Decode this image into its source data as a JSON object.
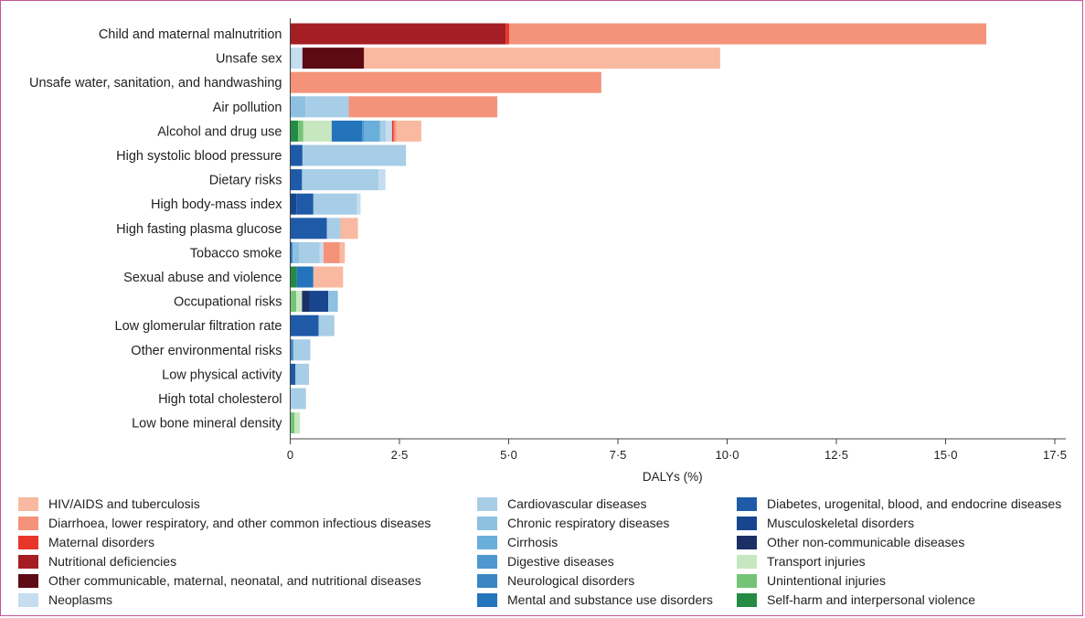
{
  "colors": {
    "HIV/AIDS and tuberculosis": "#f9b9a0",
    "Diarrhoea, lower respiratory, and other common infectious diseases": "#f4937a",
    "Maternal disorders": "#e8362b",
    "Nutritional deficiencies": "#a41e24",
    "Other communicable, maternal, neonatal, and nutritional diseases": "#5e0a14",
    "Neoplasms": "#c6dcef",
    "Cardiovascular diseases": "#a8cde6",
    "Chronic respiratory diseases": "#8ec0e1",
    "Cirrhosis": "#6aaedb",
    "Digestive diseases": "#4f98cf",
    "Neurological disorders": "#3a86c4",
    "Mental and substance use disorders": "#2474bc",
    "Diabetes, urogenital, blood, and endocrine diseases": "#1e5aa8",
    "Musculoskeletal disorders": "#17468f",
    "Other non-communicable diseases": "#1b2f66",
    "Transport injuries": "#c7e7c0",
    "Unintentional injuries": "#74c476",
    "Self-harm and interpersonal violence": "#238b45"
  },
  "legend": {
    "columns": [
      [
        "HIV/AIDS and tuberculosis",
        "Diarrhoea, lower respiratory, and other common infectious diseases",
        "Maternal disorders",
        "Nutritional deficiencies",
        "Other communicable, maternal, neonatal, and nutritional diseases",
        "Neoplasms"
      ],
      [
        "Cardiovascular diseases",
        "Chronic respiratory diseases",
        "Cirrhosis",
        "Digestive diseases",
        "Neurological disorders",
        "Mental and substance use disorders"
      ],
      [
        "Diabetes, urogenital, blood, and endocrine diseases",
        "Musculoskeletal disorders",
        "Other non-communicable diseases",
        "Transport injuries",
        "Unintentional injuries",
        "Self-harm and interpersonal violence"
      ]
    ]
  },
  "chart_data": {
    "type": "bar",
    "orientation": "horizontal",
    "stacked": true,
    "title": "",
    "xlabel": "DALYs (%)",
    "ylabel": "",
    "xlim": [
      0,
      17.5
    ],
    "xticks": [
      0,
      2.5,
      5.0,
      7.5,
      10.0,
      12.5,
      15.0,
      17.5
    ],
    "xtick_labels": [
      "0",
      "2·5",
      "5·0",
      "7·5",
      "10·0",
      "12·5",
      "15·0",
      "17·5"
    ],
    "grid": false,
    "legend_position": "bottom",
    "categories": [
      "Child and maternal malnutrition",
      "Unsafe sex",
      "Unsafe water, sanitation, and handwashing",
      "Air pollution",
      "Alcohol and drug use",
      "High systolic blood pressure",
      "Dietary risks",
      "High body-mass index",
      "High fasting plasma glucose",
      "Tobacco smoke",
      "Sexual abuse and violence",
      "Occupational risks",
      "Low glomerular filtration rate",
      "Other environmental risks",
      "Low physical activity",
      "High total cholesterol",
      "Low bone mineral density"
    ],
    "bars": [
      [
        [
          "Nutritional deficiencies",
          4.93
        ],
        [
          "Maternal disorders",
          0.08
        ],
        [
          "Diarrhoea, lower respiratory, and other common infectious diseases",
          10.92
        ]
      ],
      [
        [
          "Cardiovascular diseases",
          0.04
        ],
        [
          "Neoplasms",
          0.24
        ],
        [
          "Other communicable, maternal, neonatal, and nutritional diseases",
          1.41
        ],
        [
          "HIV/AIDS and tuberculosis",
          8.15
        ]
      ],
      [
        [
          "Diarrhoea, lower respiratory, and other common infectious diseases",
          7.12
        ]
      ],
      [
        [
          "Chronic respiratory diseases",
          0.35
        ],
        [
          "Cardiovascular diseases",
          0.99
        ],
        [
          "Diarrhoea, lower respiratory, and other common infectious diseases",
          3.4
        ]
      ],
      [
        [
          "Self-harm and interpersonal violence",
          0.18
        ],
        [
          "Unintentional injuries",
          0.12
        ],
        [
          "Transport injuries",
          0.65
        ],
        [
          "Mental and substance use disorders",
          0.7
        ],
        [
          "Digestive diseases",
          0.05
        ],
        [
          "Cirrhosis",
          0.35
        ],
        [
          "Cardiovascular diseases",
          0.14
        ],
        [
          "Neoplasms",
          0.14
        ],
        [
          "Maternal disorders",
          0.04
        ],
        [
          "Diarrhoea, lower respiratory, and other common infectious diseases",
          0.06
        ],
        [
          "HIV/AIDS and tuberculosis",
          0.57
        ]
      ],
      [
        [
          "Diabetes, urogenital, blood, and endocrine diseases",
          0.28
        ],
        [
          "Cardiovascular diseases",
          2.37
        ]
      ],
      [
        [
          "Diabetes, urogenital, blood, and endocrine diseases",
          0.27
        ],
        [
          "Cardiovascular diseases",
          1.75
        ],
        [
          "Neoplasms",
          0.16
        ]
      ],
      [
        [
          "Musculoskeletal disorders",
          0.14
        ],
        [
          "Diabetes, urogenital, blood, and endocrine diseases",
          0.39
        ],
        [
          "Cardiovascular diseases",
          1.0
        ],
        [
          "Neoplasms",
          0.08
        ]
      ],
      [
        [
          "Diabetes, urogenital, blood, and endocrine diseases",
          0.84
        ],
        [
          "Cardiovascular diseases",
          0.31
        ],
        [
          "HIV/AIDS and tuberculosis",
          0.4
        ]
      ],
      [
        [
          "Mental and substance use disorders",
          0.05
        ],
        [
          "Chronic respiratory diseases",
          0.15
        ],
        [
          "Cardiovascular diseases",
          0.47
        ],
        [
          "Neoplasms",
          0.09
        ],
        [
          "Diarrhoea, lower respiratory, and other common infectious diseases",
          0.37
        ],
        [
          "HIV/AIDS and tuberculosis",
          0.12
        ]
      ],
      [
        [
          "Self-harm and interpersonal violence",
          0.15
        ],
        [
          "Mental and substance use disorders",
          0.38
        ],
        [
          "HIV/AIDS and tuberculosis",
          0.68
        ]
      ],
      [
        [
          "Unintentional injuries",
          0.14
        ],
        [
          "Transport injuries",
          0.13
        ],
        [
          "Other non-communicable diseases",
          0.17
        ],
        [
          "Musculoskeletal disorders",
          0.43
        ],
        [
          "Chronic respiratory diseases",
          0.22
        ]
      ],
      [
        [
          "Diabetes, urogenital, blood, and endocrine diseases",
          0.65
        ],
        [
          "Cardiovascular diseases",
          0.36
        ]
      ],
      [
        [
          "Neurological disorders",
          0.07
        ],
        [
          "Cardiovascular diseases",
          0.39
        ]
      ],
      [
        [
          "Diabetes, urogenital, blood, and endocrine diseases",
          0.12
        ],
        [
          "Cardiovascular diseases",
          0.31
        ]
      ],
      [
        [
          "Cardiovascular diseases",
          0.36
        ]
      ],
      [
        [
          "Unintentional injuries",
          0.1
        ],
        [
          "Transport injuries",
          0.12
        ]
      ]
    ]
  }
}
